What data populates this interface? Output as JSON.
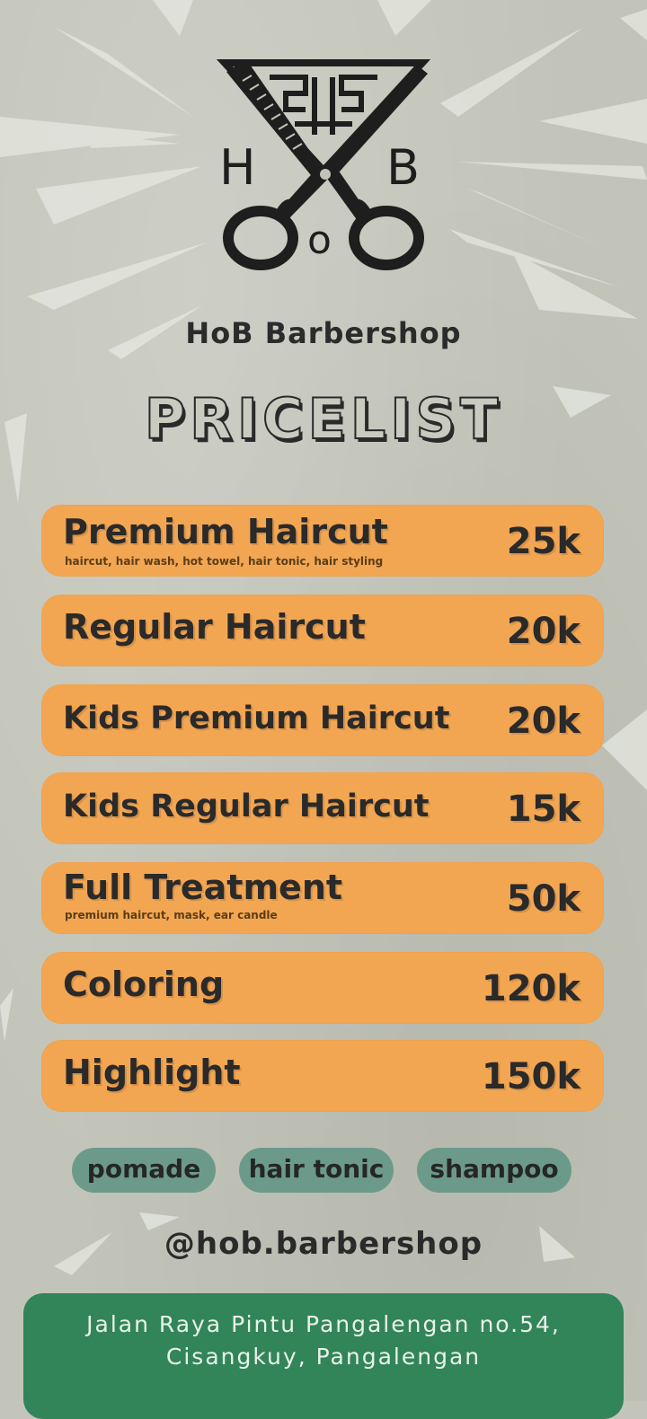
{
  "shop": {
    "logo_letters": {
      "left": "H",
      "right": "B",
      "bottom": "o"
    },
    "name": "HoB Barbershop",
    "title": "PRICELIST"
  },
  "services": [
    {
      "name": "Premium Haircut",
      "description": "haircut, hair wash, hot towel, hair tonic, hair styling",
      "price": "25k"
    },
    {
      "name": "Regular Haircut",
      "description": "",
      "price": "20k"
    },
    {
      "name": "Kids Premium Haircut",
      "description": "",
      "price": "20k"
    },
    {
      "name": "Kids Regular Haircut",
      "description": "",
      "price": "15k"
    },
    {
      "name": "Full Treatment",
      "description": "premium haircut, mask, ear candle",
      "price": "50k"
    },
    {
      "name": "Coloring",
      "description": "",
      "price": "120k"
    },
    {
      "name": "Highlight",
      "description": "",
      "price": "150k"
    }
  ],
  "products": [
    "pomade",
    "hair tonic",
    "shampoo"
  ],
  "social": {
    "handle": "@hob.barbershop"
  },
  "address": {
    "line1": "Jalan Raya Pintu Pangalengan no.54,",
    "line2": "Cisangkuy, Pangalengan"
  },
  "colors": {
    "background": "#c2c4b9",
    "service_card": "#f3a652",
    "product_pill": "#6b9a8a",
    "address_box": "#318559",
    "text": "#2a2a2a"
  }
}
